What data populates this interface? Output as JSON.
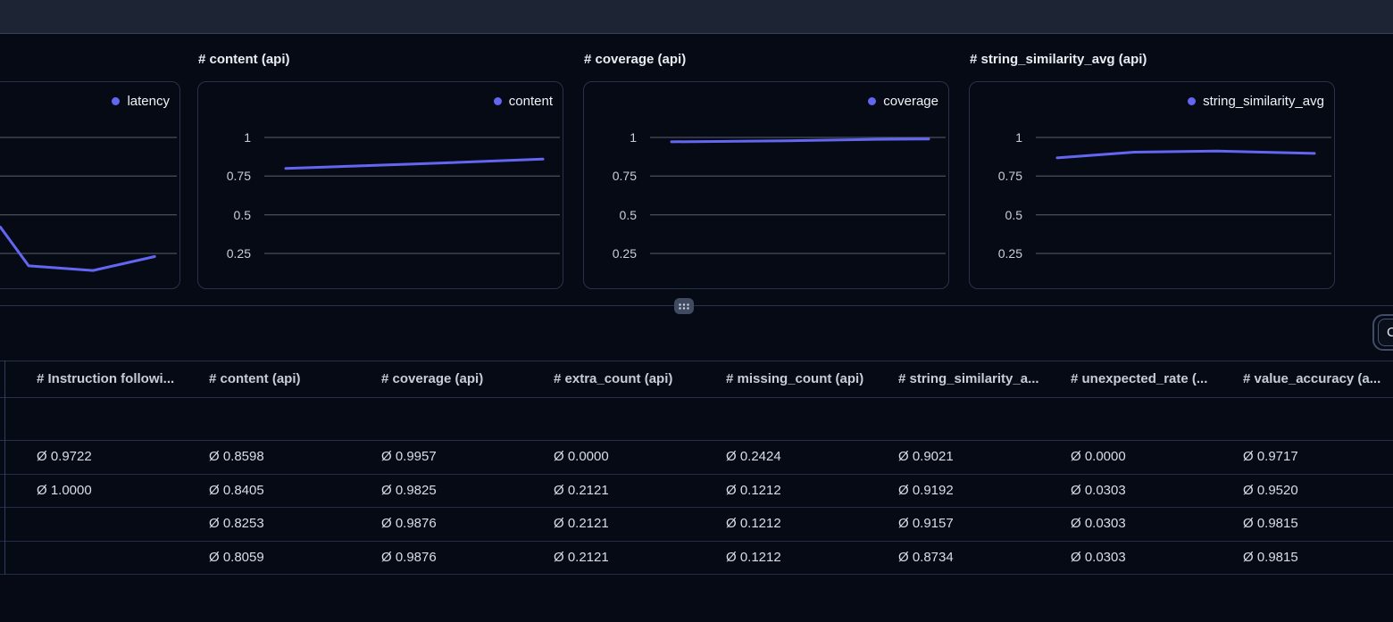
{
  "colors": {
    "accent": "#6366f1",
    "page_bg": "#060a14",
    "topbar_bg": "#1d2434",
    "panel_border": "#28324b",
    "grid_line": "#5a6070",
    "divider": "#2b344d"
  },
  "chart_data": [
    {
      "type": "line",
      "title": "",
      "series_name": "latency",
      "color": "#6366f1",
      "y_ticks": [
        "1",
        "0.75",
        "0.5",
        "0.25"
      ],
      "ylim": [
        0,
        1.1
      ],
      "legend_position": "top-right",
      "grid": "horizontal",
      "points": [
        {
          "x": 0.38,
          "v": 0.42
        },
        {
          "x": 0.49,
          "v": 0.17
        },
        {
          "x": 0.74,
          "v": 0.14
        },
        {
          "x": 0.98,
          "v": 0.23
        }
      ]
    },
    {
      "type": "line",
      "title": "# content (api)",
      "series_name": "content",
      "color": "#6366f1",
      "y_ticks": [
        "1",
        "0.75",
        "0.5",
        "0.25"
      ],
      "ylim": [
        0,
        1.1
      ],
      "legend_position": "top-right",
      "grid": "horizontal",
      "points": [
        {
          "x": 0,
          "v": 0.8
        },
        {
          "x": 0.5,
          "v": 0.828
        },
        {
          "x": 1,
          "v": 0.86
        }
      ]
    },
    {
      "type": "line",
      "title": "# coverage (api)",
      "series_name": "coverage",
      "color": "#6366f1",
      "y_ticks": [
        "1",
        "0.75",
        "0.5",
        "0.25"
      ],
      "ylim": [
        0,
        1.1
      ],
      "legend_position": "top-right",
      "grid": "horizontal",
      "points": [
        {
          "x": 0,
          "v": 0.972
        },
        {
          "x": 0.45,
          "v": 0.978
        },
        {
          "x": 0.8,
          "v": 0.988
        },
        {
          "x": 1,
          "v": 0.99
        }
      ]
    },
    {
      "type": "line",
      "title": "# string_similarity_avg (api)",
      "series_name": "string_similarity_avg",
      "color": "#6366f1",
      "y_ticks": [
        "1",
        "0.75",
        "0.5",
        "0.25"
      ],
      "ylim": [
        0,
        1.1
      ],
      "legend_position": "top-right",
      "grid": "horizontal",
      "points": [
        {
          "x": 0,
          "v": 0.868
        },
        {
          "x": 0.3,
          "v": 0.905
        },
        {
          "x": 0.62,
          "v": 0.912
        },
        {
          "x": 1,
          "v": 0.897
        }
      ]
    }
  ],
  "splitter": {
    "icon": "grip-dots-icon"
  },
  "columns_button": {
    "visible_label": "C"
  },
  "table": {
    "columns": [
      "# Instruction followi...",
      "# content (api)",
      "# coverage (api)",
      "# extra_count (api)",
      "# missing_count (api)",
      "# string_similarity_a...",
      "# unexpected_rate (...",
      "# value_accuracy (a..."
    ],
    "rows": [
      [
        "Ø 0.9722",
        "Ø 0.8598",
        "Ø 0.9957",
        "Ø 0.0000",
        "Ø 0.2424",
        "Ø 0.9021",
        "Ø 0.0000",
        "Ø 0.9717"
      ],
      [
        "Ø 1.0000",
        "Ø 0.8405",
        "Ø 0.9825",
        "Ø 0.2121",
        "Ø 0.1212",
        "Ø 0.9192",
        "Ø 0.0303",
        "Ø 0.9520"
      ],
      [
        "",
        "Ø 0.8253",
        "Ø 0.9876",
        "Ø 0.2121",
        "Ø 0.1212",
        "Ø 0.9157",
        "Ø 0.0303",
        "Ø 0.9815"
      ],
      [
        "",
        "Ø 0.8059",
        "Ø 0.9876",
        "Ø 0.2121",
        "Ø 0.1212",
        "Ø 0.8734",
        "Ø 0.0303",
        "Ø 0.9815"
      ]
    ]
  }
}
